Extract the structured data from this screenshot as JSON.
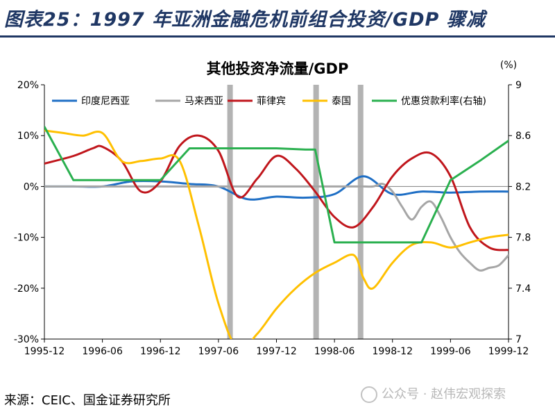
{
  "header": {
    "title": "图表25：1997 年亚洲金融危机前组合投资/GDP 骤减"
  },
  "source": {
    "label": "来源：CEIC、国金证券研究所"
  },
  "watermark": {
    "text": "公众号 · 赵伟宏观探索"
  },
  "chart_data": {
    "type": "line",
    "title": "其他投资净流量/GDP",
    "right_unit": "(%)",
    "x_ticks": [
      "1995-12",
      "1996-06",
      "1996-12",
      "1997-06",
      "1997-12",
      "1998-06",
      "1998-12",
      "1999-06",
      "1999-12"
    ],
    "left_axis": {
      "ylim": [
        -30,
        20
      ],
      "ticks": [
        20,
        10,
        0,
        -10,
        -20,
        -30
      ],
      "tick_labels": [
        "20%",
        "10%",
        "0%",
        "-10%",
        "-20%",
        "-30%"
      ]
    },
    "right_axis": {
      "ylim": [
        7,
        9
      ],
      "ticks": [
        9,
        8.6,
        8.2,
        7.8,
        7.4,
        7
      ],
      "tick_labels": [
        "9",
        "8.6",
        "8.2",
        "7.8",
        "7.4",
        "7"
      ]
    },
    "x_range": [
      0,
      48
    ],
    "shaded_periods": [
      19.2,
      28.1,
      32.7
    ],
    "legend_position": "top",
    "series": [
      {
        "name": "印度尼西亚",
        "color": "#1f6fc5",
        "axis": "left",
        "x": [
          0,
          3,
          6,
          9,
          12,
          15,
          18,
          21,
          24,
          27,
          30,
          33,
          36,
          39,
          42,
          45,
          48
        ],
        "y": [
          0,
          0,
          0,
          1,
          1,
          0.5,
          0,
          -2.5,
          -2,
          -2.2,
          -1.5,
          2,
          -1.5,
          -1,
          -1.2,
          -1,
          -1
        ]
      },
      {
        "name": "马来西亚",
        "color": "#a6a6a6",
        "axis": "left",
        "x": [
          0,
          3,
          6,
          9,
          12,
          15,
          18,
          21,
          24,
          27,
          29,
          30,
          31,
          32,
          33,
          34,
          35,
          36,
          37,
          38,
          39,
          40,
          41,
          42,
          43,
          44,
          45,
          46,
          47,
          48
        ],
        "y": [
          0,
          0,
          0,
          0,
          0,
          0,
          0,
          0,
          0,
          0,
          0,
          0,
          0,
          0,
          0,
          0,
          0.5,
          -1,
          -4,
          -6.5,
          -4,
          -3,
          -6,
          -10,
          -13,
          -15,
          -16.5,
          -16,
          -15.5,
          -13.5
        ]
      },
      {
        "name": "菲律宾",
        "color": "#c0161c",
        "axis": "left",
        "x": [
          0,
          3,
          5,
          6,
          8,
          10,
          12,
          14,
          16,
          18,
          20,
          22,
          24,
          26,
          28,
          30,
          32,
          34,
          36,
          38,
          40,
          42,
          44,
          46,
          48
        ],
        "y": [
          4.5,
          6,
          7.5,
          7.8,
          5,
          -1,
          1,
          8,
          10,
          7,
          -2,
          1.5,
          6,
          3.5,
          -1,
          -6,
          -8,
          -4,
          2,
          5.5,
          6.5,
          2,
          -8,
          -12,
          -12.5
        ]
      },
      {
        "name": "泰国",
        "color": "#ffc000",
        "axis": "left",
        "x": [
          0,
          2,
          4,
          6,
          8,
          10,
          12,
          14,
          16,
          18,
          20,
          22,
          24,
          26,
          28,
          30,
          32,
          33,
          34,
          36,
          38,
          40,
          42,
          44,
          46,
          48
        ],
        "y": [
          11,
          10.5,
          10,
          10.5,
          5,
          5,
          5.5,
          5,
          -8,
          -23,
          -32,
          -29,
          -24,
          -20,
          -17,
          -15,
          -13.5,
          -18,
          -20,
          -15,
          -11.5,
          -11,
          -12,
          -11,
          -10,
          -9.5
        ]
      },
      {
        "name": "优惠贷款利率(右轴)",
        "color": "#2ab04f",
        "axis": "right",
        "x": [
          0,
          3,
          6,
          9,
          12,
          15,
          18,
          21,
          24,
          27,
          28,
          30,
          33,
          36,
          39,
          42,
          45,
          48
        ],
        "y": [
          8.67,
          8.25,
          8.25,
          8.25,
          8.25,
          8.5,
          8.5,
          8.5,
          8.5,
          8.49,
          8.49,
          7.76,
          7.76,
          7.76,
          7.76,
          8.25,
          8.4,
          8.56
        ]
      }
    ]
  }
}
